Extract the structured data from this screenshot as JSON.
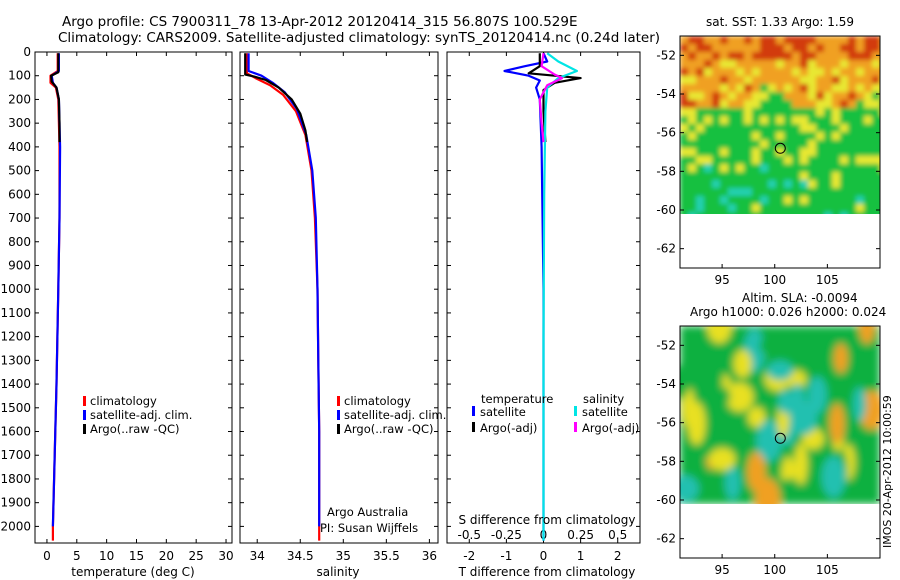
{
  "header": {
    "line1": "Argo profile: CS 7900311_78 13-Apr-2012 20120414_315 56.807S 100.529E",
    "line2": "Climatology: CARS2009. Satellite-adjusted climatology: synTS_20120414.nc (0.24d later)"
  },
  "side_stamp": "IMOS 20-Apr-2012 10:00:59",
  "chart_data": [
    {
      "id": "temperature",
      "type": "line",
      "xlabel": "temperature (deg C)",
      "ylabel": "",
      "xlim": [
        -2,
        31
      ],
      "ylim": [
        2070,
        0
      ],
      "x_ticks": [
        0,
        5,
        10,
        15,
        20,
        25,
        30
      ],
      "y_ticks": [
        0,
        100,
        200,
        300,
        400,
        500,
        600,
        700,
        800,
        900,
        1000,
        1100,
        1200,
        1300,
        1400,
        1500,
        1600,
        1700,
        1800,
        1900,
        2000
      ],
      "legend": [
        "climatology",
        "satellite-adj. clim.",
        "Argo(..raw -QC)"
      ],
      "legend_position": "lower-right",
      "series": [
        {
          "name": "climatology",
          "color": "#ff0000",
          "points": [
            [
              1.8,
              5
            ],
            [
              1.8,
              80
            ],
            [
              0.6,
              100
            ],
            [
              0.6,
              130
            ],
            [
              1.5,
              150
            ],
            [
              1.9,
              200
            ],
            [
              2.1,
              400
            ],
            [
              2.1,
              700
            ],
            [
              1.9,
              1000
            ],
            [
              1.6,
              1400
            ],
            [
              1.3,
              1700
            ],
            [
              1.0,
              2000
            ],
            [
              1.0,
              2060
            ]
          ]
        },
        {
          "name": "satellite-adj. clim.",
          "color": "#0000ff",
          "points": [
            [
              2.0,
              5
            ],
            [
              2.0,
              80
            ],
            [
              0.8,
              100
            ],
            [
              1.0,
              130
            ],
            [
              1.6,
              150
            ],
            [
              2.0,
              200
            ],
            [
              2.2,
              400
            ],
            [
              2.1,
              700
            ],
            [
              1.9,
              1000
            ],
            [
              1.6,
              1400
            ],
            [
              1.3,
              1700
            ],
            [
              1.0,
              2000
            ],
            [
              1.0,
              2000
            ]
          ]
        },
        {
          "name": "Argo(..raw -QC)",
          "color": "#000000",
          "points": [
            [
              1.9,
              5
            ],
            [
              1.9,
              85
            ],
            [
              0.7,
              100
            ],
            [
              0.8,
              125
            ],
            [
              1.6,
              150
            ],
            [
              2.0,
              200
            ],
            [
              2.1,
              300
            ],
            [
              2.1,
              380
            ]
          ]
        }
      ]
    },
    {
      "id": "salinity",
      "type": "line",
      "xlabel": "salinity",
      "ylabel": "",
      "xlim": [
        33.8,
        36.1
      ],
      "ylim": [
        2070,
        0
      ],
      "x_ticks": [
        34,
        34.5,
        35,
        35.5,
        36
      ],
      "legend": [
        "climatology",
        "satellite-adj. clim.",
        "Argo(..raw -QC)"
      ],
      "legend_position": "lower-right",
      "annotations": [
        "Argo Australia",
        "PI: Susan Wijffels"
      ],
      "series": [
        {
          "name": "climatology",
          "color": "#ff0000",
          "points": [
            [
              33.88,
              5
            ],
            [
              33.88,
              90
            ],
            [
              33.98,
              110
            ],
            [
              34.15,
              140
            ],
            [
              34.3,
              180
            ],
            [
              34.45,
              250
            ],
            [
              34.56,
              350
            ],
            [
              34.63,
              500
            ],
            [
              34.67,
              700
            ],
            [
              34.7,
              1000
            ],
            [
              34.71,
              1300
            ],
            [
              34.72,
              1600
            ],
            [
              34.72,
              1900
            ],
            [
              34.72,
              2060
            ]
          ]
        },
        {
          "name": "satellite-adj. clim.",
          "color": "#0000ff",
          "points": [
            [
              33.9,
              5
            ],
            [
              33.9,
              80
            ],
            [
              34.05,
              100
            ],
            [
              34.18,
              130
            ],
            [
              34.32,
              170
            ],
            [
              34.46,
              240
            ],
            [
              34.57,
              350
            ],
            [
              34.64,
              500
            ],
            [
              34.68,
              700
            ],
            [
              34.7,
              1000
            ],
            [
              34.71,
              1300
            ],
            [
              34.72,
              1600
            ],
            [
              34.72,
              1900
            ],
            [
              34.72,
              2000
            ]
          ]
        },
        {
          "name": "Argo(..raw -QC)",
          "color": "#000000",
          "points": [
            [
              33.86,
              5
            ],
            [
              33.86,
              95
            ],
            [
              33.98,
              105
            ],
            [
              34.1,
              118
            ],
            [
              34.25,
              150
            ],
            [
              34.4,
              200
            ],
            [
              34.5,
              260
            ],
            [
              34.56,
              330
            ],
            [
              34.58,
              380
            ]
          ]
        }
      ]
    },
    {
      "id": "difference",
      "type": "line",
      "xlabel": "T difference from climatology",
      "x2label": "S difference from climatology",
      "ylabel": "",
      "xlim": [
        -2.6,
        2.6
      ],
      "ylim": [
        2070,
        0
      ],
      "x_ticks": [
        -2,
        -1,
        0,
        1,
        2
      ],
      "x2_ticks": [
        "-0.5",
        "-0.25",
        "0",
        "0.25",
        "0.5"
      ],
      "legend_headers": [
        "temperature",
        "salinity"
      ],
      "legend": [
        "satellite",
        "Argo(-adj)",
        "satellite",
        "Argo(-adj)"
      ],
      "legend_position": "lower-center",
      "series": [
        {
          "name": "satellite",
          "group": "temperature",
          "color": "#0000ff",
          "points": [
            [
              0.0,
              5
            ],
            [
              0.1,
              40
            ],
            [
              -0.5,
              60
            ],
            [
              -1.05,
              80
            ],
            [
              -0.4,
              100
            ],
            [
              -0.1,
              120
            ],
            [
              -0.2,
              150
            ],
            [
              -0.1,
              200
            ],
            [
              -0.05,
              400
            ],
            [
              0,
              1000
            ],
            [
              0,
              2060
            ]
          ]
        },
        {
          "name": "Argo(-adj)",
          "group": "temperature",
          "color": "#000000",
          "points": [
            [
              -0.1,
              5
            ],
            [
              -0.1,
              60
            ],
            [
              -0.4,
              90
            ],
            [
              0.3,
              100
            ],
            [
              1.0,
              110
            ],
            [
              0.3,
              130
            ],
            [
              0.0,
              160
            ],
            [
              0.0,
              250
            ],
            [
              0.05,
              380
            ]
          ]
        },
        {
          "name": "satellite",
          "group": "salinity",
          "color": "#00e5e5",
          "points": [
            [
              0.1,
              5
            ],
            [
              0.4,
              40
            ],
            [
              0.9,
              80
            ],
            [
              0.4,
              110
            ],
            [
              0.1,
              150
            ],
            [
              0.05,
              250
            ],
            [
              0.02,
              600
            ],
            [
              0.0,
              1200
            ],
            [
              0.0,
              2060
            ]
          ]
        },
        {
          "name": "Argo(-adj)",
          "group": "salinity",
          "color": "#ff00ff",
          "points": [
            [
              0.0,
              5
            ],
            [
              -0.05,
              60
            ],
            [
              0.3,
              95
            ],
            [
              0.5,
              110
            ],
            [
              0.1,
              140
            ],
            [
              -0.1,
              200
            ],
            [
              -0.05,
              300
            ],
            [
              0.0,
              380
            ]
          ]
        }
      ]
    },
    {
      "id": "sst-map",
      "type": "heatmap",
      "title": "sat. SST: 1.33 Argo: 1.59",
      "xlim": [
        91,
        110
      ],
      "ylim": [
        -63,
        -51
      ],
      "x_ticks": [
        95,
        100,
        105
      ],
      "y_ticks": [
        -52,
        -54,
        -56,
        -58,
        -60,
        -62
      ],
      "marker": {
        "lon": 100.529,
        "lat": -56.807
      },
      "colors": {
        "warm": "#d23a10",
        "mid": "#f0a020",
        "yellow": "#e8e830",
        "green": "#18c040",
        "cyan": "#20d0b0"
      }
    },
    {
      "id": "sla-map",
      "type": "heatmap",
      "title_line1": "Altim. SLA: -0.0094",
      "title_line2": "Argo h1000: 0.026 h2000: 0.024",
      "xlim": [
        91,
        110
      ],
      "ylim": [
        -63,
        -51
      ],
      "x_ticks": [
        95,
        100,
        105
      ],
      "y_ticks": [
        -52,
        -54,
        -56,
        -58,
        -60,
        -62
      ],
      "marker": {
        "lon": 100.529,
        "lat": -56.807
      },
      "colors": {
        "green": "#10b040",
        "yellow": "#e8e020",
        "orange": "#f0a020",
        "cyan": "#20c0b0"
      }
    }
  ]
}
